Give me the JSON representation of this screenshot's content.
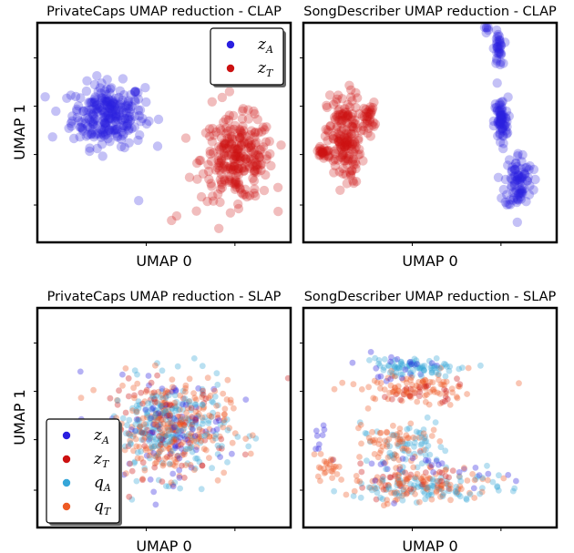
{
  "figure": {
    "panels": [
      {
        "title": "PrivateCaps UMAP reduction - CLAP",
        "xlabel": "UMAP 0",
        "ylabel": "UMAP 1"
      },
      {
        "title": "SongDescriber UMAP reduction - CLAP",
        "xlabel": "UMAP 0",
        "ylabel": ""
      },
      {
        "title": "PrivateCaps UMAP reduction - SLAP",
        "xlabel": "UMAP 0",
        "ylabel": "UMAP 1"
      },
      {
        "title": "SongDescriber UMAP reduction - SLAP",
        "xlabel": "UMAP 0",
        "ylabel": ""
      }
    ]
  },
  "legends": {
    "clap": [
      {
        "base": "z",
        "sub": "A",
        "color": "#2a1fe0"
      },
      {
        "base": "z",
        "sub": "T",
        "color": "#cc1111"
      }
    ],
    "slap": [
      {
        "base": "z",
        "sub": "A",
        "color": "#2a1fe0"
      },
      {
        "base": "z",
        "sub": "T",
        "color": "#cc1111"
      },
      {
        "base": "q",
        "sub": "A",
        "color": "#36a6d8"
      },
      {
        "base": "q",
        "sub": "T",
        "color": "#ee5a24"
      }
    ]
  },
  "chart_data": [
    {
      "type": "scatter",
      "title": "PrivateCaps UMAP reduction - CLAP",
      "xlabel": "UMAP 0",
      "ylabel": "UMAP 1",
      "tick_labels": "none",
      "legend": "top-right",
      "series": [
        {
          "name": "z_A",
          "color": "#2a1fe0",
          "clusters": [
            {
              "cx": 0.28,
              "cy": 0.58,
              "sx": 0.13,
              "sy": 0.13,
              "n": 260
            }
          ],
          "outliers": [
            [
              0.4,
              0.19
            ],
            [
              0.06,
              0.48
            ]
          ]
        },
        {
          "name": "z_T",
          "color": "#cc1111",
          "clusters": [
            {
              "cx": 0.79,
              "cy": 0.38,
              "sx": 0.13,
              "sy": 0.17,
              "n": 260
            }
          ],
          "outliers": [
            [
              0.53,
              0.1
            ],
            [
              0.55,
              0.12
            ],
            [
              0.69,
              0.64
            ],
            [
              0.73,
              0.66
            ],
            [
              0.95,
              0.25
            ]
          ]
        }
      ]
    },
    {
      "type": "scatter",
      "title": "SongDescriber UMAP reduction - CLAP",
      "xlabel": "UMAP 0",
      "ylabel": "",
      "tick_labels": "none",
      "series": [
        {
          "name": "z_A",
          "color": "#2a1fe0",
          "clusters": [
            {
              "cx": 0.77,
              "cy": 0.88,
              "sx": 0.015,
              "sy": 0.07,
              "n": 35
            },
            {
              "cx": 0.78,
              "cy": 0.55,
              "sx": 0.025,
              "sy": 0.1,
              "n": 70
            },
            {
              "cx": 0.85,
              "cy": 0.28,
              "sx": 0.05,
              "sy": 0.12,
              "n": 90
            },
            {
              "cx": 0.73,
              "cy": 0.97,
              "sx": 0.01,
              "sy": 0.015,
              "n": 6
            }
          ]
        },
        {
          "name": "z_T",
          "color": "#cc1111",
          "clusters": [
            {
              "cx": 0.16,
              "cy": 0.47,
              "sx": 0.06,
              "sy": 0.19,
              "n": 170
            },
            {
              "cx": 0.08,
              "cy": 0.41,
              "sx": 0.03,
              "sy": 0.03,
              "n": 25
            },
            {
              "cx": 0.26,
              "cy": 0.57,
              "sx": 0.02,
              "sy": 0.06,
              "n": 30
            }
          ]
        }
      ]
    },
    {
      "type": "scatter",
      "title": "PrivateCaps UMAP reduction - SLAP",
      "xlabel": "UMAP 0",
      "ylabel": "UMAP 1",
      "tick_labels": "none",
      "legend": "bottom-left",
      "series": [
        {
          "name": "z_A",
          "color": "#2a1fe0",
          "clusters": [
            {
              "cx": 0.52,
              "cy": 0.45,
              "sx": 0.21,
              "sy": 0.2,
              "n": 80
            }
          ],
          "outliers": [
            [
              0.17,
              0.71
            ]
          ]
        },
        {
          "name": "z_T",
          "color": "#cc1111",
          "clusters": [
            {
              "cx": 0.52,
              "cy": 0.45,
              "sx": 0.21,
              "sy": 0.2,
              "n": 90
            }
          ],
          "outliers": [
            [
              0.99,
              0.68
            ]
          ]
        },
        {
          "name": "q_A",
          "color": "#36a6d8",
          "clusters": [
            {
              "cx": 0.52,
              "cy": 0.45,
              "sx": 0.21,
              "sy": 0.2,
              "n": 230
            }
          ]
        },
        {
          "name": "q_T",
          "color": "#ee5a24",
          "clusters": [
            {
              "cx": 0.52,
              "cy": 0.45,
              "sx": 0.21,
              "sy": 0.2,
              "n": 230
            }
          ]
        }
      ]
    },
    {
      "type": "scatter",
      "title": "SongDescriber UMAP reduction - SLAP",
      "xlabel": "UMAP 0",
      "ylabel": "",
      "tick_labels": "none",
      "series": [
        {
          "name": "z_A",
          "color": "#2a1fe0",
          "clusters": [
            {
              "cx": 0.4,
              "cy": 0.73,
              "sx": 0.16,
              "sy": 0.05,
              "n": 20
            },
            {
              "cx": 0.48,
              "cy": 0.25,
              "sx": 0.25,
              "sy": 0.1,
              "n": 25
            },
            {
              "cx": 0.07,
              "cy": 0.4,
              "sx": 0.02,
              "sy": 0.05,
              "n": 8
            }
          ]
        },
        {
          "name": "z_T",
          "color": "#cc1111",
          "clusters": [
            {
              "cx": 0.45,
              "cy": 0.62,
              "sx": 0.18,
              "sy": 0.05,
              "n": 25
            },
            {
              "cx": 0.45,
              "cy": 0.22,
              "sx": 0.25,
              "sy": 0.09,
              "n": 30
            }
          ]
        },
        {
          "name": "q_A",
          "color": "#36a6d8",
          "clusters": [
            {
              "cx": 0.45,
              "cy": 0.73,
              "sx": 0.18,
              "sy": 0.05,
              "n": 80
            },
            {
              "cx": 0.4,
              "cy": 0.37,
              "sx": 0.16,
              "sy": 0.08,
              "n": 60
            },
            {
              "cx": 0.5,
              "cy": 0.18,
              "sx": 0.26,
              "sy": 0.07,
              "n": 90
            }
          ]
        },
        {
          "name": "q_T",
          "color": "#ee5a24",
          "clusters": [
            {
              "cx": 0.43,
              "cy": 0.63,
              "sx": 0.2,
              "sy": 0.06,
              "n": 90
            },
            {
              "cx": 0.37,
              "cy": 0.4,
              "sx": 0.15,
              "sy": 0.08,
              "n": 60
            },
            {
              "cx": 0.45,
              "cy": 0.2,
              "sx": 0.27,
              "sy": 0.07,
              "n": 100
            },
            {
              "cx": 0.1,
              "cy": 0.28,
              "sx": 0.05,
              "sy": 0.05,
              "n": 25
            }
          ]
        }
      ]
    }
  ]
}
